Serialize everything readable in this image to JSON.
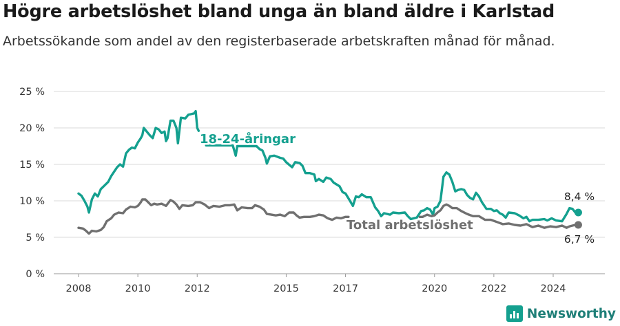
{
  "title": "Högre arbetslöshet bland unga än bland äldre i Karlstad",
  "subtitle": "Arbetssökande som andel av den registerbaserade arbetskraften månad för månad.",
  "brand": "Newsworthy",
  "colors": {
    "youth": "#14a08f",
    "total": "#707070",
    "grid": "#d9d9d9",
    "text": "#333333"
  },
  "chart_data": {
    "type": "line",
    "title": "Högre arbetslöshet bland unga än bland äldre i Karlstad",
    "ylim": [
      0,
      25
    ],
    "xlim": [
      2007.2,
      2025.3
    ],
    "grid": true,
    "y_ticks": [
      {
        "v": 0,
        "label": "0 %"
      },
      {
        "v": 5,
        "label": "5 %"
      },
      {
        "v": 10,
        "label": "10 %"
      },
      {
        "v": 15,
        "label": "15 %"
      },
      {
        "v": 20,
        "label": "20 %"
      },
      {
        "v": 25,
        "label": "25 %"
      }
    ],
    "x_ticks": [
      {
        "v": 2008,
        "label": "2008"
      },
      {
        "v": 2010,
        "label": "2010"
      },
      {
        "v": 2012,
        "label": "2012"
      },
      {
        "v": 2015,
        "label": "2015"
      },
      {
        "v": 2017,
        "label": "2017"
      },
      {
        "v": 2020,
        "label": "2020"
      },
      {
        "v": 2022,
        "label": "2022"
      },
      {
        "v": 2024,
        "label": "2024"
      }
    ],
    "series": [
      {
        "key": "youth",
        "name": "18-24-åringar",
        "end_label": "8,4 %",
        "points": [
          [
            2008.0,
            11.0
          ],
          [
            2008.1,
            10.7
          ],
          [
            2008.2,
            10.0
          ],
          [
            2008.3,
            9.2
          ],
          [
            2008.35,
            8.4
          ],
          [
            2008.45,
            10.2
          ],
          [
            2008.55,
            11.0
          ],
          [
            2008.65,
            10.6
          ],
          [
            2008.75,
            11.6
          ],
          [
            2008.85,
            12.0
          ],
          [
            2009.0,
            12.6
          ],
          [
            2009.1,
            13.4
          ],
          [
            2009.2,
            14.0
          ],
          [
            2009.3,
            14.6
          ],
          [
            2009.4,
            15.0
          ],
          [
            2009.5,
            14.7
          ],
          [
            2009.6,
            16.5
          ],
          [
            2009.7,
            17.0
          ],
          [
            2009.8,
            17.3
          ],
          [
            2009.9,
            17.2
          ],
          [
            2010.0,
            18.0
          ],
          [
            2010.1,
            18.6
          ],
          [
            2010.15,
            19.0
          ],
          [
            2010.2,
            20.0
          ],
          [
            2010.3,
            19.5
          ],
          [
            2010.4,
            19.0
          ],
          [
            2010.5,
            18.6
          ],
          [
            2010.6,
            20.0
          ],
          [
            2010.7,
            19.8
          ],
          [
            2010.8,
            19.3
          ],
          [
            2010.9,
            19.5
          ],
          [
            2010.95,
            18.2
          ],
          [
            2011.0,
            18.6
          ],
          [
            2011.1,
            21.0
          ],
          [
            2011.2,
            21.0
          ],
          [
            2011.3,
            20.0
          ],
          [
            2011.35,
            17.9
          ],
          [
            2011.45,
            21.4
          ],
          [
            2011.6,
            21.3
          ],
          [
            2011.7,
            21.8
          ],
          [
            2011.8,
            21.9
          ],
          [
            2011.9,
            22.0
          ],
          [
            2011.95,
            22.3
          ],
          [
            2012.0,
            20.0
          ],
          [
            2012.05,
            19.6
          ]
        ],
        "points_b": [
          [
            2012.3,
            17.6
          ],
          [
            2013.2,
            17.6
          ],
          [
            2013.3,
            16.2
          ],
          [
            2013.35,
            17.5
          ],
          [
            2014.0,
            17.5
          ],
          [
            2014.1,
            17.1
          ],
          [
            2014.2,
            16.9
          ],
          [
            2014.3,
            15.9
          ],
          [
            2014.35,
            15.1
          ],
          [
            2014.45,
            16.1
          ],
          [
            2014.6,
            16.2
          ],
          [
            2014.8,
            15.9
          ],
          [
            2014.9,
            15.8
          ],
          [
            2015.0,
            15.3
          ],
          [
            2015.2,
            14.6
          ],
          [
            2015.3,
            15.3
          ],
          [
            2015.45,
            15.2
          ],
          [
            2015.55,
            14.8
          ],
          [
            2015.65,
            13.8
          ],
          [
            2015.8,
            13.8
          ],
          [
            2015.95,
            13.6
          ],
          [
            2016.0,
            12.7
          ],
          [
            2016.1,
            13.0
          ],
          [
            2016.25,
            12.6
          ],
          [
            2016.35,
            13.2
          ],
          [
            2016.5,
            13.0
          ],
          [
            2016.6,
            12.5
          ],
          [
            2016.8,
            12.0
          ],
          [
            2016.9,
            11.2
          ],
          [
            2017.0,
            11.0
          ],
          [
            2017.15,
            10.0
          ],
          [
            2017.25,
            9.3
          ],
          [
            2017.35,
            10.6
          ],
          [
            2017.45,
            10.5
          ],
          [
            2017.55,
            10.9
          ],
          [
            2017.7,
            10.5
          ],
          [
            2017.85,
            10.5
          ],
          [
            2018.0,
            9.1
          ],
          [
            2018.1,
            8.6
          ],
          [
            2018.2,
            7.9
          ],
          [
            2018.3,
            8.3
          ],
          [
            2018.5,
            8.1
          ],
          [
            2018.6,
            8.4
          ],
          [
            2018.8,
            8.3
          ],
          [
            2019.0,
            8.4
          ],
          [
            2019.1,
            7.9
          ],
          [
            2019.2,
            7.5
          ],
          [
            2019.4,
            7.7
          ],
          [
            2019.55,
            8.6
          ],
          [
            2019.65,
            8.7
          ],
          [
            2019.75,
            9.0
          ],
          [
            2019.85,
            8.8
          ],
          [
            2019.95,
            8.1
          ],
          [
            2020.0,
            9.0
          ],
          [
            2020.1,
            9.2
          ],
          [
            2020.2,
            10.0
          ],
          [
            2020.3,
            13.3
          ],
          [
            2020.4,
            13.9
          ],
          [
            2020.5,
            13.6
          ],
          [
            2020.6,
            12.6
          ],
          [
            2020.7,
            11.3
          ],
          [
            2020.8,
            11.5
          ],
          [
            2020.9,
            11.6
          ],
          [
            2021.0,
            11.5
          ],
          [
            2021.1,
            10.8
          ],
          [
            2021.2,
            10.4
          ],
          [
            2021.3,
            10.2
          ],
          [
            2021.4,
            11.1
          ],
          [
            2021.5,
            10.6
          ],
          [
            2021.6,
            9.8
          ],
          [
            2021.75,
            8.9
          ],
          [
            2021.9,
            8.9
          ],
          [
            2022.0,
            8.6
          ],
          [
            2022.1,
            8.7
          ],
          [
            2022.2,
            8.3
          ],
          [
            2022.3,
            8.1
          ],
          [
            2022.4,
            7.7
          ],
          [
            2022.5,
            8.4
          ],
          [
            2022.7,
            8.3
          ],
          [
            2022.85,
            8.0
          ],
          [
            2023.0,
            7.6
          ],
          [
            2023.1,
            7.8
          ],
          [
            2023.2,
            7.2
          ],
          [
            2023.3,
            7.4
          ],
          [
            2023.5,
            7.4
          ],
          [
            2023.7,
            7.5
          ],
          [
            2023.8,
            7.3
          ],
          [
            2023.95,
            7.6
          ],
          [
            2024.1,
            7.3
          ],
          [
            2024.3,
            7.2
          ],
          [
            2024.45,
            8.2
          ],
          [
            2024.55,
            9.0
          ],
          [
            2024.65,
            8.9
          ],
          [
            2024.75,
            8.4
          ],
          [
            2024.8,
            8.4
          ]
        ]
      },
      {
        "key": "total",
        "name": "Total arbetslöshet",
        "end_label": "6,7 %",
        "points": [
          [
            2008.0,
            6.3
          ],
          [
            2008.15,
            6.2
          ],
          [
            2008.25,
            5.9
          ],
          [
            2008.35,
            5.5
          ],
          [
            2008.45,
            5.9
          ],
          [
            2008.6,
            5.8
          ],
          [
            2008.75,
            6.0
          ],
          [
            2008.85,
            6.4
          ],
          [
            2008.95,
            7.2
          ],
          [
            2009.1,
            7.6
          ],
          [
            2009.2,
            8.1
          ],
          [
            2009.35,
            8.4
          ],
          [
            2009.5,
            8.3
          ],
          [
            2009.6,
            8.8
          ],
          [
            2009.75,
            9.2
          ],
          [
            2009.9,
            9.1
          ],
          [
            2010.0,
            9.3
          ],
          [
            2010.1,
            9.8
          ],
          [
            2010.15,
            10.2
          ],
          [
            2010.25,
            10.2
          ],
          [
            2010.35,
            9.8
          ],
          [
            2010.45,
            9.4
          ],
          [
            2010.55,
            9.6
          ],
          [
            2010.65,
            9.5
          ],
          [
            2010.8,
            9.6
          ],
          [
            2010.95,
            9.3
          ],
          [
            2011.1,
            10.1
          ],
          [
            2011.2,
            9.9
          ],
          [
            2011.3,
            9.5
          ],
          [
            2011.4,
            8.9
          ],
          [
            2011.5,
            9.4
          ],
          [
            2011.7,
            9.3
          ],
          [
            2011.85,
            9.4
          ],
          [
            2011.95,
            9.8
          ],
          [
            2012.1,
            9.8
          ],
          [
            2012.25,
            9.5
          ],
          [
            2012.4,
            9.0
          ],
          [
            2012.55,
            9.3
          ],
          [
            2012.75,
            9.2
          ],
          [
            2012.95,
            9.4
          ],
          [
            2013.1,
            9.4
          ],
          [
            2013.25,
            9.5
          ],
          [
            2013.35,
            8.7
          ],
          [
            2013.5,
            9.1
          ],
          [
            2013.7,
            9.0
          ],
          [
            2013.85,
            9.0
          ],
          [
            2013.95,
            9.4
          ],
          [
            2014.1,
            9.2
          ],
          [
            2014.25,
            8.8
          ],
          [
            2014.35,
            8.2
          ],
          [
            2014.5,
            8.1
          ],
          [
            2014.65,
            8.0
          ],
          [
            2014.8,
            8.1
          ],
          [
            2014.95,
            7.9
          ],
          [
            2015.1,
            8.4
          ],
          [
            2015.25,
            8.4
          ],
          [
            2015.35,
            8.0
          ],
          [
            2015.45,
            7.7
          ],
          [
            2015.6,
            7.8
          ],
          [
            2015.8,
            7.8
          ],
          [
            2015.95,
            7.9
          ],
          [
            2016.1,
            8.1
          ],
          [
            2016.25,
            8.0
          ],
          [
            2016.4,
            7.6
          ],
          [
            2016.55,
            7.4
          ],
          [
            2016.7,
            7.7
          ],
          [
            2016.85,
            7.6
          ],
          [
            2017.0,
            7.8
          ],
          [
            2017.1,
            7.8
          ]
        ],
        "points_b": [
          [
            2019.5,
            7.8
          ],
          [
            2019.6,
            7.8
          ],
          [
            2019.75,
            8.1
          ],
          [
            2019.9,
            7.9
          ],
          [
            2020.0,
            8.0
          ],
          [
            2020.1,
            8.4
          ],
          [
            2020.2,
            8.7
          ],
          [
            2020.3,
            9.3
          ],
          [
            2020.4,
            9.5
          ],
          [
            2020.5,
            9.3
          ],
          [
            2020.6,
            9.0
          ],
          [
            2020.75,
            9.0
          ],
          [
            2020.9,
            8.6
          ],
          [
            2021.1,
            8.2
          ],
          [
            2021.3,
            7.9
          ],
          [
            2021.5,
            7.9
          ],
          [
            2021.7,
            7.4
          ],
          [
            2021.9,
            7.4
          ],
          [
            2022.1,
            7.1
          ],
          [
            2022.3,
            6.8
          ],
          [
            2022.5,
            6.9
          ],
          [
            2022.7,
            6.7
          ],
          [
            2022.9,
            6.6
          ],
          [
            2023.1,
            6.8
          ],
          [
            2023.3,
            6.4
          ],
          [
            2023.5,
            6.6
          ],
          [
            2023.7,
            6.3
          ],
          [
            2023.9,
            6.5
          ],
          [
            2024.1,
            6.4
          ],
          [
            2024.3,
            6.6
          ],
          [
            2024.45,
            6.3
          ],
          [
            2024.55,
            6.5
          ],
          [
            2024.65,
            6.6
          ],
          [
            2024.75,
            6.7
          ],
          [
            2024.8,
            6.7
          ]
        ]
      }
    ]
  }
}
